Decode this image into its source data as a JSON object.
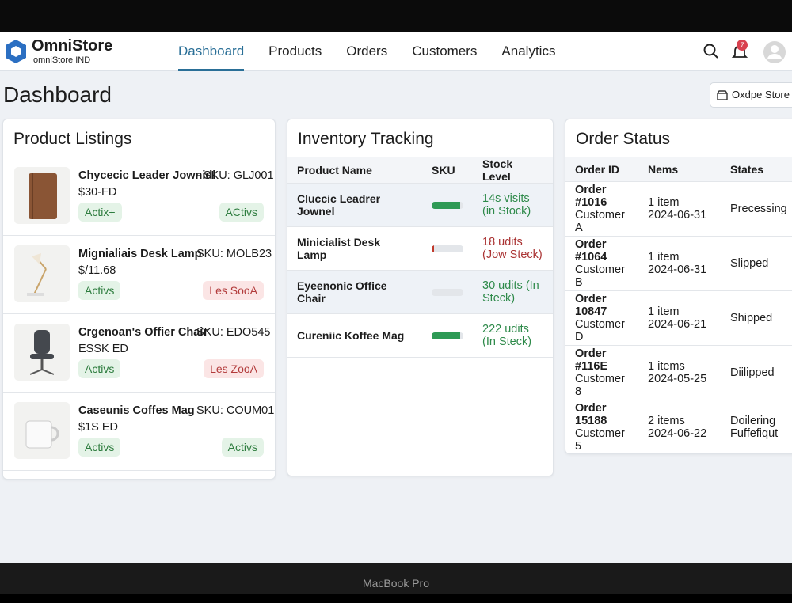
{
  "device_label": "MacBook Pro",
  "brand": {
    "name": "OmniStore",
    "subtitle": "omniStore IND"
  },
  "nav": [
    "Dashboard",
    "Products",
    "Orders",
    "Customers",
    "Analytics"
  ],
  "notification_count": "7",
  "page_title": "Dashboard",
  "store_button": "Oxdpe Store",
  "product_listings": {
    "title": "Product Listings",
    "items": [
      {
        "name": "Chycecic Leader Jownidl",
        "sku": "- SKU: GLJ001",
        "price": "$30-FD",
        "status": "Actix+",
        "tag": "ACtivs"
      },
      {
        "name": "Mignialiais Desk Lamp",
        "sku": "SKU: MOLB23",
        "price": "$/11.68",
        "status": "Activs",
        "tag": "Les SooA"
      },
      {
        "name": "Crgenoan's Offier Chair",
        "sku": "SKU: EDO545",
        "price": "ESSK ED",
        "status": "Activs",
        "tag": "Les ZooA"
      },
      {
        "name": "Caseunis Coffes Mag",
        "sku": "SKU: COUM01",
        "price": "$1S ED",
        "status": "Activs",
        "tag": "Activs"
      }
    ]
  },
  "inventory": {
    "title": "Inventory Tracking",
    "columns": [
      "Product Name",
      "SKU",
      "Stock Level"
    ],
    "rows": [
      {
        "name": "Cluccic Leadrer Jownel",
        "stock": "14s visits (in Stock)"
      },
      {
        "name": "Minicialist Desk Lamp",
        "stock": "18 udits (Jow Steck)"
      },
      {
        "name": "Eyeenonic Office Chair",
        "stock": "30 udits (In Steck)"
      },
      {
        "name": "Cureniic Koffee Mag",
        "stock": "222 udits (In Steck)"
      }
    ]
  },
  "orders": {
    "title": "Order Status",
    "columns": [
      "Order ID",
      "Nems",
      "States"
    ],
    "rows": [
      {
        "id": "Order #1016",
        "customer": "Customer A",
        "items": "1 item",
        "date": "2024-06-31",
        "state": "Precessing"
      },
      {
        "id": "Order #1064",
        "customer": "Customer B",
        "items": "1 item",
        "date": "2024-06-31",
        "state": "Slipped"
      },
      {
        "id": "Order 10847",
        "customer": "Customer D",
        "items": "1 item",
        "date": "2024-06-21",
        "state": "Shipped"
      },
      {
        "id": "Order #116E",
        "customer": "Customer 8",
        "items": "1 items",
        "date": "2024-05-25",
        "state": "Diilipped"
      },
      {
        "id": "Order 15188",
        "customer": "Customer 5",
        "items": "2 items",
        "date": "2024-06-22",
        "state": "Doilering Fuffefiqut"
      }
    ]
  }
}
